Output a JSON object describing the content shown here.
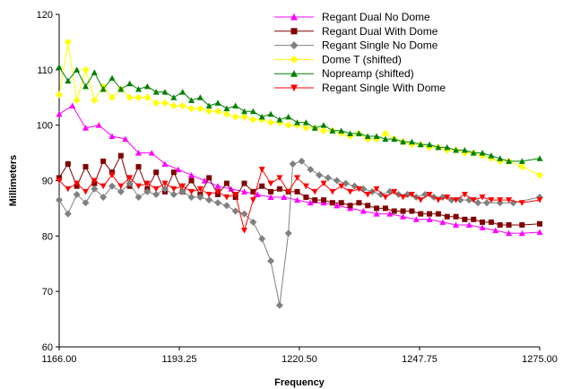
{
  "chart_data": {
    "type": "line",
    "xlabel": "Frequency",
    "ylabel": "Millimeters",
    "xlim": [
      1166.0,
      1275.0
    ],
    "ylim": [
      60,
      120
    ],
    "xticks": [
      1166.0,
      1193.25,
      1220.5,
      1247.75,
      1275.0
    ],
    "xtick_labels": [
      "1166.00",
      "1193.25",
      "1220.50",
      "1247.75",
      "1275.00"
    ],
    "yticks": [
      60,
      70,
      80,
      90,
      100,
      110,
      120
    ],
    "ytick_labels": [
      "60",
      "70",
      "80",
      "90",
      "100",
      "110",
      "120"
    ],
    "grid": false,
    "legend_position": "top-right",
    "series": [
      {
        "name": "Regant Dual No Dome",
        "color": "#ff00ff",
        "marker": "triangle-up",
        "x": [
          1166,
          1169,
          1172,
          1175,
          1178,
          1181,
          1184,
          1187,
          1190,
          1193,
          1196,
          1199,
          1202,
          1205,
          1208,
          1211,
          1214,
          1217,
          1220,
          1223,
          1226,
          1229,
          1232,
          1235,
          1238,
          1241,
          1244,
          1247,
          1250,
          1253,
          1256,
          1259,
          1262,
          1265,
          1268,
          1271,
          1275
        ],
        "values": [
          102,
          103.5,
          99.5,
          100,
          98,
          97.5,
          95,
          95,
          93,
          92,
          91,
          90,
          89,
          88.5,
          88,
          87.5,
          87,
          87,
          86.5,
          86,
          86,
          85.5,
          85,
          84.5,
          84,
          84,
          83.5,
          83,
          83,
          82.5,
          82,
          82,
          81.5,
          81,
          80.5,
          80.5,
          80.7
        ]
      },
      {
        "name": "Regant Dual With Dome",
        "color": "#800000",
        "marker": "square",
        "x": [
          1166,
          1168,
          1170,
          1172,
          1174,
          1176,
          1178,
          1180,
          1182,
          1184,
          1186,
          1188,
          1190,
          1192,
          1194,
          1196,
          1198,
          1200,
          1202,
          1204,
          1206,
          1208,
          1210,
          1212,
          1214,
          1216,
          1218,
          1220,
          1222,
          1224,
          1226,
          1228,
          1230,
          1232,
          1234,
          1236,
          1238,
          1240,
          1242,
          1244,
          1246,
          1248,
          1250,
          1252,
          1254,
          1256,
          1258,
          1260,
          1262,
          1264,
          1266,
          1268,
          1271,
          1275
        ],
        "values": [
          90.5,
          93,
          89,
          92.5,
          89.5,
          93.5,
          91.5,
          94.5,
          89,
          92.5,
          88.5,
          91.5,
          88,
          91.5,
          88,
          90,
          87.5,
          90.5,
          87.5,
          89.5,
          87,
          89.5,
          88,
          89,
          88,
          88.5,
          88,
          88,
          87,
          86.5,
          86.5,
          86,
          86,
          85.5,
          86,
          85.5,
          85,
          85,
          84.5,
          84.5,
          84.5,
          84,
          84,
          84,
          83.5,
          83.5,
          83,
          83,
          82.5,
          82.5,
          82,
          82,
          82,
          82.2
        ]
      },
      {
        "name": "Regant Single No Dome",
        "color": "#808080",
        "marker": "diamond",
        "x": [
          1166,
          1168,
          1170,
          1172,
          1174,
          1176,
          1178,
          1180,
          1182,
          1184,
          1186,
          1188,
          1190,
          1192,
          1194,
          1196,
          1198,
          1200,
          1202,
          1204,
          1206,
          1208,
          1210,
          1212,
          1214,
          1216,
          1218,
          1219,
          1221,
          1223,
          1225,
          1227,
          1229,
          1231,
          1233,
          1235,
          1237,
          1239,
          1241,
          1243,
          1245,
          1247,
          1249,
          1251,
          1253,
          1255,
          1257,
          1259,
          1261,
          1263,
          1266,
          1269,
          1275
        ],
        "values": [
          86.5,
          84,
          87.5,
          86,
          88.5,
          87,
          89,
          88,
          89.5,
          87,
          88,
          87.5,
          88.5,
          87.5,
          88,
          87,
          87,
          86.5,
          86,
          85.5,
          84.5,
          84,
          82.5,
          79.5,
          75.5,
          67.5,
          80.5,
          93,
          93.5,
          92,
          91,
          90.5,
          90,
          89.5,
          89,
          88.5,
          88,
          87.5,
          88,
          87.5,
          87.5,
          87,
          87.5,
          87,
          87,
          86.5,
          86.5,
          86.5,
          86,
          86,
          86,
          86,
          87
        ]
      },
      {
        "name": "Dome T (shifted)",
        "color": "#ffff00",
        "marker": "diamond",
        "x": [
          1166,
          1168,
          1170,
          1172,
          1174,
          1176,
          1178,
          1180,
          1182,
          1184,
          1186,
          1188,
          1190,
          1192,
          1194,
          1196,
          1198,
          1200,
          1202,
          1204,
          1206,
          1208,
          1210,
          1212,
          1214,
          1216,
          1218,
          1220,
          1222,
          1224,
          1226,
          1228,
          1230,
          1232,
          1234,
          1236,
          1238,
          1240,
          1242,
          1244,
          1246,
          1248,
          1250,
          1252,
          1254,
          1256,
          1258,
          1260,
          1262,
          1264,
          1266,
          1268,
          1271,
          1275
        ],
        "values": [
          105.5,
          115,
          104.5,
          110,
          104.5,
          107,
          105,
          106.5,
          105,
          105,
          105,
          104,
          104,
          103.5,
          103.5,
          103,
          103,
          102.5,
          102.5,
          102,
          101.5,
          101.5,
          101,
          101,
          100.5,
          100.5,
          100,
          100,
          99.5,
          99.5,
          99,
          99,
          98.5,
          98,
          98.5,
          97.5,
          97.5,
          98.5,
          97.5,
          97,
          96.5,
          96.5,
          96,
          96,
          95.5,
          95.5,
          95,
          95,
          94.5,
          94,
          93.5,
          93.5,
          92.5,
          91
        ]
      },
      {
        "name": "Nopreamp (shifted)",
        "color": "#008000",
        "marker": "triangle-up",
        "x": [
          1166,
          1168,
          1170,
          1172,
          1174,
          1176,
          1178,
          1180,
          1182,
          1184,
          1186,
          1188,
          1190,
          1192,
          1194,
          1196,
          1198,
          1200,
          1202,
          1204,
          1206,
          1208,
          1210,
          1212,
          1214,
          1216,
          1218,
          1220,
          1222,
          1224,
          1226,
          1228,
          1230,
          1232,
          1234,
          1236,
          1238,
          1240,
          1242,
          1244,
          1246,
          1248,
          1250,
          1252,
          1254,
          1256,
          1258,
          1260,
          1262,
          1264,
          1266,
          1268,
          1271,
          1275
        ],
        "values": [
          110.5,
          108,
          110,
          107,
          109.5,
          106.5,
          108.5,
          106.5,
          107.5,
          106.5,
          107,
          106,
          106,
          105,
          106,
          104.5,
          105,
          103.5,
          104,
          103,
          103.5,
          102.5,
          102.5,
          101.5,
          102,
          101,
          101.5,
          100.5,
          100.5,
          99.5,
          100,
          99,
          99,
          98.5,
          98.5,
          98,
          98,
          97.5,
          97.5,
          97,
          97,
          96.5,
          96.5,
          96,
          96,
          95.5,
          95.5,
          95,
          95,
          94.5,
          94,
          93.5,
          93.5,
          94
        ]
      },
      {
        "name": "Regant Single With Dome",
        "color": "#ff0000",
        "marker": "triangle-down",
        "x": [
          1166,
          1168,
          1170,
          1172,
          1174,
          1176,
          1178,
          1180,
          1182,
          1184,
          1186,
          1188,
          1190,
          1192,
          1194,
          1196,
          1198,
          1200,
          1202,
          1204,
          1206,
          1208,
          1210,
          1212,
          1214,
          1216,
          1218,
          1220,
          1222,
          1224,
          1226,
          1228,
          1230,
          1232,
          1234,
          1236,
          1238,
          1240,
          1242,
          1244,
          1246,
          1248,
          1250,
          1252,
          1254,
          1256,
          1258,
          1260,
          1262,
          1264,
          1266,
          1268,
          1271,
          1275
        ],
        "values": [
          90,
          88.5,
          89.5,
          88,
          90,
          89,
          91,
          89,
          90.5,
          89,
          89.5,
          88.5,
          89.5,
          88.5,
          89,
          88,
          88.5,
          87.5,
          88,
          87,
          87.5,
          81,
          86.5,
          92,
          89.5,
          90.5,
          88,
          90.5,
          89,
          88,
          89.5,
          88,
          89,
          88,
          88.5,
          87.5,
          88.5,
          87,
          88,
          87,
          87.5,
          86.5,
          87.5,
          86.5,
          87,
          86.5,
          87.5,
          86.5,
          87,
          86.5,
          86.5,
          86.5,
          86,
          86.5
        ]
      }
    ]
  }
}
